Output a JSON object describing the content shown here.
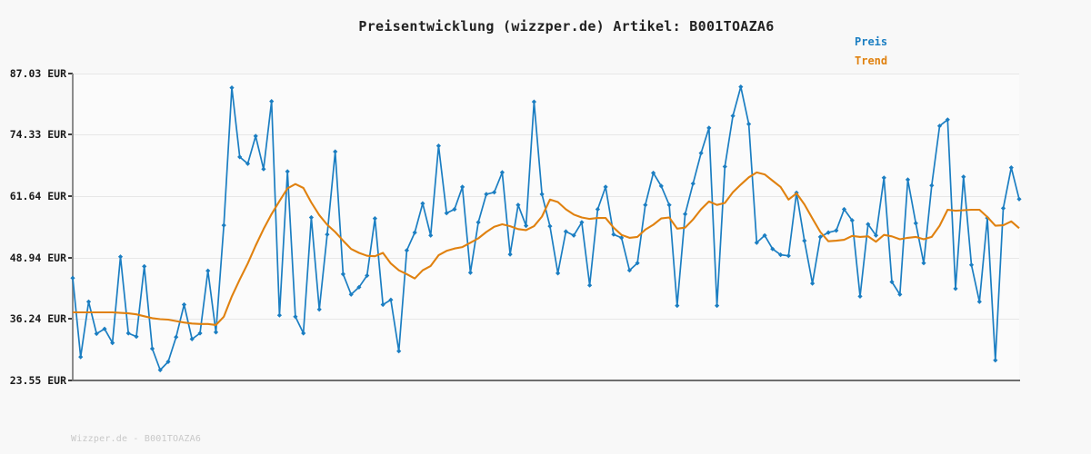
{
  "chart_data": {
    "type": "line",
    "title": "Preisentwicklung (wizzper.de) Artikel: B001TOAZA6",
    "currency": "EUR",
    "ylim": [
      23.55,
      87.03
    ],
    "yticks": [
      "87.03 EUR",
      "74.33 EUR",
      "61.64 EUR",
      "48.94 EUR",
      "36.24 EUR",
      "23.55 EUR"
    ],
    "ytick_values": [
      87.03,
      74.33,
      61.64,
      48.94,
      36.24,
      23.55
    ],
    "xlabel": "",
    "ylabel": "",
    "grid": "horizontal",
    "legend_position": "top-right",
    "axis_color": "#8c8c8c",
    "grid_color": "#e7e7e7",
    "series": [
      {
        "name": "Preis",
        "color": "#1b7ec2",
        "marker": "diamond",
        "values": [
          44.8,
          28.5,
          39.9,
          33.3,
          34.3,
          31.4,
          49.2,
          33.4,
          32.7,
          47.2,
          30.2,
          25.8,
          27.5,
          32.6,
          39.3,
          32.2,
          33.4,
          46.3,
          33.6,
          55.7,
          84.1,
          69.8,
          68.4,
          74.1,
          67.3,
          81.3,
          37.1,
          66.8,
          36.8,
          33.4,
          57.3,
          38.3,
          53.8,
          70.9,
          45.6,
          41.4,
          42.9,
          45.3,
          57.1,
          39.3,
          40.3,
          29.7,
          50.5,
          54.2,
          60.2,
          53.6,
          72.1,
          58.2,
          59.0,
          63.6,
          45.9,
          56.3,
          62.1,
          62.5,
          66.6,
          49.7,
          59.9,
          55.6,
          81.2,
          62.1,
          55.5,
          45.8,
          54.4,
          53.6,
          56.3,
          43.3,
          59.0,
          63.6,
          53.8,
          53.1,
          46.4,
          47.9,
          59.9,
          66.5,
          63.8,
          59.9,
          39.1,
          58.0,
          64.3,
          70.6,
          75.8,
          39.1,
          67.8,
          78.3,
          84.3,
          76.6,
          52.1,
          53.6,
          50.8,
          49.6,
          49.4,
          62.4,
          52.5,
          43.7,
          53.3,
          54.2,
          54.6,
          59.0,
          56.7,
          41.0,
          55.9,
          53.6,
          65.5,
          44.0,
          41.4,
          65.1,
          56.1,
          47.9,
          63.9,
          76.2,
          77.5,
          42.6,
          65.7,
          47.5,
          39.9,
          57.2,
          27.8,
          59.2,
          67.6,
          61.1
        ]
      },
      {
        "name": "Trend",
        "color": "#e0810f",
        "marker": "none",
        "values": [
          37.7,
          37.7,
          37.7,
          37.7,
          37.7,
          37.7,
          37.6,
          37.5,
          37.3,
          36.9,
          36.5,
          36.3,
          36.2,
          35.9,
          35.6,
          35.4,
          35.3,
          35.3,
          35.1,
          36.8,
          41.0,
          44.5,
          47.8,
          51.5,
          54.9,
          58.0,
          60.7,
          63.3,
          64.2,
          63.4,
          60.4,
          57.8,
          55.8,
          54.3,
          52.5,
          50.8,
          50.0,
          49.4,
          49.3,
          50.0,
          47.8,
          46.4,
          45.6,
          44.7,
          46.4,
          47.3,
          49.5,
          50.4,
          50.9,
          51.2,
          52.1,
          53.0,
          54.3,
          55.4,
          55.9,
          55.5,
          54.9,
          54.7,
          55.5,
          57.5,
          61.0,
          60.5,
          59.0,
          57.9,
          57.3,
          57.0,
          57.2,
          57.2,
          55.2,
          53.7,
          53.1,
          53.3,
          54.8,
          55.8,
          57.1,
          57.3,
          55.0,
          55.2,
          56.9,
          59.0,
          60.6,
          59.9,
          60.3,
          62.5,
          64.1,
          65.6,
          66.6,
          66.2,
          64.9,
          63.6,
          61.0,
          62.3,
          60.0,
          57.1,
          54.3,
          52.4,
          52.5,
          52.7,
          53.5,
          53.3,
          53.4,
          52.3,
          53.7,
          53.4,
          52.8,
          53.1,
          53.3,
          52.8,
          53.3,
          55.6,
          58.9,
          58.7,
          58.8,
          58.9,
          58.9,
          57.4,
          55.6,
          55.7,
          56.5,
          55.1
        ]
      }
    ]
  },
  "footer": {
    "watermark": "Wizzper.de - B001TOAZA6"
  }
}
